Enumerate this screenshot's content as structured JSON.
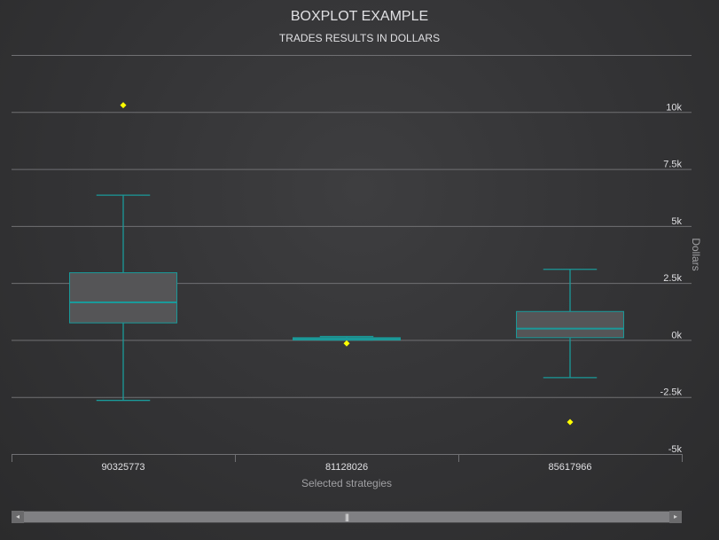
{
  "chart_data": {
    "type": "boxplot",
    "title": "BOXPLOT EXAMPLE",
    "subtitle": "TRADES RESULTS IN DOLLARS",
    "xlabel": "Selected strategies",
    "ylabel": "Dollars",
    "categories": [
      "90325773",
      "81128026",
      "85617966"
    ],
    "boxes": [
      {
        "low": -2650,
        "q1": 750,
        "median": 1650,
        "q3": 2950,
        "high": 6350
      },
      {
        "low": 0,
        "q1": 0,
        "median": 50,
        "q3": 100,
        "high": 150
      },
      {
        "low": -1650,
        "q1": 100,
        "median": 500,
        "q3": 1250,
        "high": 3100
      }
    ],
    "outliers": [
      {
        "category": "90325773",
        "value": 10300
      },
      {
        "category": "81128026",
        "value": -150
      },
      {
        "category": "85617966",
        "value": -3600
      }
    ],
    "yticks": [
      {
        "value": -5000,
        "label": "-5k"
      },
      {
        "value": -2500,
        "label": "-2.5k"
      },
      {
        "value": 0,
        "label": "0k"
      },
      {
        "value": 2500,
        "label": "2.5k"
      },
      {
        "value": 5000,
        "label": "5k"
      },
      {
        "value": 7500,
        "label": "7.5k"
      },
      {
        "value": 10000,
        "label": "10k"
      }
    ],
    "ylim": [
      -5000,
      12500
    ],
    "y_axis_side": "right",
    "grid": true,
    "colors": {
      "box_fill": "#555557",
      "box_stroke": "#1a9a9a",
      "outlier": "#ffff00",
      "grid": "#707073",
      "text": "#e0e0e3"
    }
  },
  "scrollbar": {
    "left_arrow": "◂",
    "right_arrow": "▸",
    "grip": "|||"
  }
}
